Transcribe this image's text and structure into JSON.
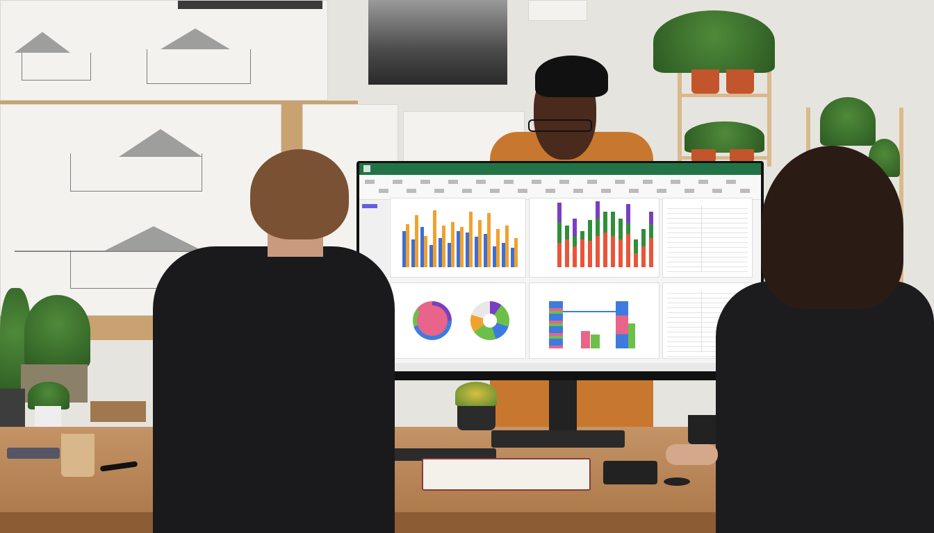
{
  "scene": {
    "colors": {
      "wall": "#e6e4df",
      "desk": "#b98a5a",
      "jacket": "#1a1a1c",
      "shirt": "#c8782e",
      "excel_green": "#217346"
    }
  },
  "screen": {
    "app_icon": "spreadsheet-icon",
    "bar_chart_1": {
      "orange": [
        62,
        75,
        45,
        82,
        60,
        65,
        58,
        80,
        68,
        78,
        55,
        60,
        42
      ],
      "blue": [
        52,
        40,
        58,
        32,
        42,
        35,
        52,
        50,
        44,
        48,
        30,
        35,
        28
      ],
      "colors": [
        "#f0a22e",
        "#3e6fd1"
      ]
    },
    "bar_chart_2": {
      "red": [
        35,
        40,
        30,
        40,
        38,
        45,
        50,
        45,
        40,
        48,
        20,
        30,
        42
      ],
      "green": [
        30,
        20,
        15,
        12,
        30,
        25,
        30,
        35,
        30,
        15,
        20,
        25,
        20
      ],
      "purple": [
        28,
        0,
        25,
        0,
        0,
        25,
        0,
        0,
        0,
        28,
        0,
        0,
        18
      ],
      "colors": [
        "#e8553a",
        "#2f8f3a",
        "#7a3fc0"
      ]
    },
    "donut_1": {
      "colors": [
        "#7a3fc0",
        "#3e7be0",
        "#6cc04a",
        "#e8648a"
      ]
    },
    "donut_2": {
      "colors": [
        "#7a3fc0",
        "#6cc04a",
        "#3e7be0",
        "#f0a22e",
        "#e8e8e8"
      ]
    },
    "bar_chart_3": {
      "colors": [
        "#3e7be0",
        "#e8648a",
        "#6cc04a"
      ]
    }
  }
}
